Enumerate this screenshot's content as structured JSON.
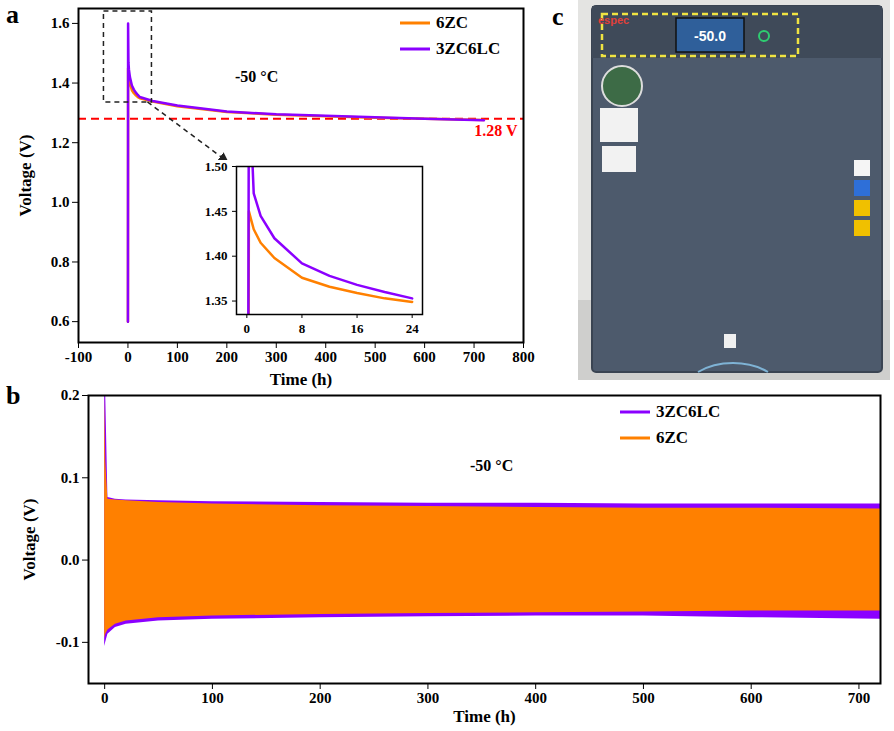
{
  "chart_data": [
    {
      "panel": "a",
      "type": "line",
      "annotation": "-50 °C",
      "x_label": "Time (h)",
      "y_label": "Voltage (V)",
      "x": [
        0,
        0.3,
        1,
        2,
        4,
        8,
        12,
        16,
        20,
        24,
        50,
        100,
        200,
        300,
        400,
        500,
        600,
        720
      ],
      "series": [
        {
          "name": "6ZC",
          "color": "#FF8000",
          "values": [
            0.6,
            1.45,
            1.43,
            1.415,
            1.398,
            1.376,
            1.366,
            1.359,
            1.353,
            1.349,
            1.338,
            1.322,
            1.303,
            1.294,
            1.289,
            1.284,
            1.28,
            1.276
          ]
        },
        {
          "name": "3ZC6LC",
          "color": "#8B00FF",
          "values": [
            0.6,
            1.6,
            1.47,
            1.445,
            1.42,
            1.392,
            1.378,
            1.368,
            1.36,
            1.353,
            1.34,
            1.325,
            1.305,
            1.295,
            1.29,
            1.285,
            1.28,
            1.275
          ]
        }
      ],
      "xlim": [
        -100,
        800
      ],
      "xticks": [
        -100,
        0,
        100,
        200,
        300,
        400,
        500,
        600,
        700,
        800
      ],
      "ylim": [
        0.53,
        1.65
      ],
      "yticks": [
        0.6,
        0.8,
        {
          "value": 1,
          "label": "1.0"
        },
        1.2,
        1.4,
        1.6
      ],
      "reference_line": {
        "value": 1.28,
        "label": "1.28 V",
        "color": "#FF0000",
        "line_style": "dashed"
      },
      "legend": "top-right",
      "inset": {
        "type": "line",
        "x": [
          0,
          0.3,
          1,
          2,
          4,
          8,
          12,
          16,
          20,
          24
        ],
        "series": [
          {
            "name": "6ZC",
            "color": "#FF8000",
            "values": [
              0.6,
              1.45,
              1.43,
              1.415,
              1.398,
              1.376,
              1.366,
              1.359,
              1.353,
              1.349
            ]
          },
          {
            "name": "3ZC6LC",
            "color": "#8B00FF",
            "values": [
              0.6,
              1.6,
              1.47,
              1.445,
              1.42,
              1.392,
              1.378,
              1.368,
              1.36,
              1.353
            ]
          }
        ],
        "xlim": [
          -1.5,
          25.5
        ],
        "xticks": [
          0,
          8,
          16,
          24
        ],
        "ylim": [
          1.335,
          1.5
        ],
        "yticks": [
          1.35,
          {
            "value": 1.4,
            "label": "1.40"
          },
          1.45,
          {
            "value": 1.5,
            "label": "1.50"
          }
        ]
      }
    },
    {
      "panel": "b",
      "type": "band",
      "annotation": "-50 °C",
      "x_label": "Time (h)",
      "y_label": "Voltage (V)",
      "x": [
        0,
        1,
        3,
        10,
        20,
        50,
        100,
        200,
        300,
        400,
        500,
        600,
        720
      ],
      "series": [
        {
          "name": "3ZC6LC",
          "color": "#8B00FF",
          "upper": [
            0.2,
            0.2,
            0.076,
            0.074,
            0.073,
            0.072,
            0.071,
            0.07,
            0.069,
            0.069,
            0.068,
            0.068,
            0.068
          ],
          "lower": [
            -0.105,
            -0.1,
            -0.09,
            -0.082,
            -0.078,
            -0.074,
            -0.072,
            -0.07,
            -0.069,
            -0.068,
            -0.068,
            -0.07,
            -0.072
          ]
        },
        {
          "name": "6ZC",
          "color": "#FF8000",
          "upper": [
            0.2,
            0.12,
            0.074,
            0.073,
            0.072,
            0.07,
            0.068,
            0.066,
            0.065,
            0.064,
            0.063,
            0.063,
            0.062
          ],
          "lower": [
            -0.095,
            -0.09,
            -0.085,
            -0.078,
            -0.074,
            -0.07,
            -0.068,
            -0.066,
            -0.065,
            -0.064,
            -0.063,
            -0.062,
            -0.062
          ]
        }
      ],
      "xlim": [
        -15,
        720
      ],
      "xticks": [
        0,
        100,
        200,
        300,
        400,
        500,
        600,
        700
      ],
      "ylim": [
        -0.15,
        0.2
      ],
      "yticks": [
        -0.1,
        {
          "value": 0,
          "label": "0.0"
        },
        0.1,
        0.2
      ],
      "legend": "top-right"
    }
  ],
  "photo": {
    "panel": "c",
    "brand": "espec",
    "display": "-50.0"
  }
}
